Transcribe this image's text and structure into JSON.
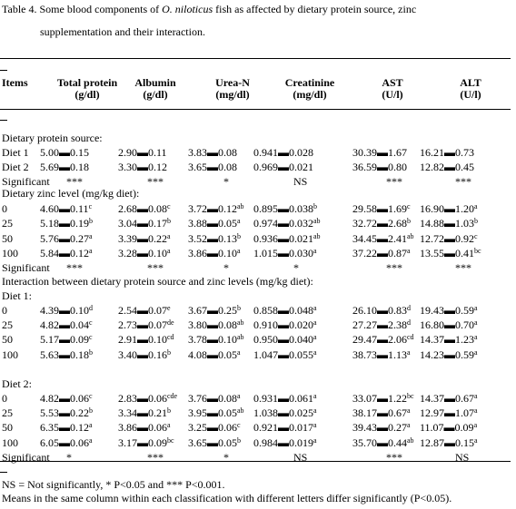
{
  "caption": {
    "pre": "Table 4. Some blood components of ",
    "species": "O. niloticus",
    "post": " fish as affected by dietary protein source, zinc",
    "line2": "supplementation and their interaction."
  },
  "headers": {
    "items": "Items",
    "total_protein": [
      "Total protein",
      "(g/dl)"
    ],
    "albumin": [
      "Albumin",
      "(g/dl)"
    ],
    "urea": [
      "Urea-N",
      "(mg/dl)"
    ],
    "creatinine": [
      "Creatinine",
      "(mg/dl)"
    ],
    "ast": [
      "AST",
      "(U/l)"
    ],
    "alt": [
      "ALT",
      "(U/l)"
    ]
  },
  "sections": {
    "protein": "Dietary protein source:",
    "zinc": "Dietary zinc level  (mg/kg diet):",
    "interaction": "Interaction between dietary protein source and zinc levels (mg/kg diet):",
    "diet1": "Diet 1:",
    "diet2": "Diet 2:"
  },
  "rows": [
    {
      "label": "Diet 1",
      "tp": "5.00▬0.15",
      "alb": "2.90▬0.11",
      "urea": "3.83▬0.08",
      "cre": "0.941▬0.028",
      "ast": "30.39▬1.67",
      "alt": "16.21▬0.73"
    },
    {
      "label": "Diet 2",
      "tp": "5.69▬0.18",
      "alb": "3.30▬0.12",
      "urea": "3.65▬0.08",
      "cre": "0.969▬0.021",
      "ast": "36.59▬0.80",
      "alt": "12.82▬0.45"
    },
    {
      "label": "Significant",
      "tp": "***",
      "alb": "***",
      "urea": "*",
      "cre": "NS",
      "ast": "***",
      "alt": "***"
    },
    {
      "label": "0",
      "tp": "4.60▬0.11",
      "tpS": "c",
      "alb": "2.68▬0.08",
      "albS": "c",
      "urea": "3.72▬0.12",
      "ureaS": "ab",
      "cre": "0.895▬0.038",
      "creS": "b",
      "ast": "29.58▬1.69",
      "astS": "c",
      "alt": "16.90▬1.20",
      "altS": "a"
    },
    {
      "label": "25",
      "tp": "5.18▬0.19",
      "tpS": "b",
      "alb": "3.04▬0.17",
      "albS": "b",
      "urea": "3.88▬0.05",
      "ureaS": "a",
      "cre": "0.974▬0.032",
      "creS": "ab",
      "ast": "32.72▬2.68",
      "astS": "b",
      "alt": "14.88▬1.03",
      "altS": "b"
    },
    {
      "label": "50",
      "tp": "5.76▬0.27",
      "tpS": "a",
      "alb": "3.39▬0.22",
      "albS": "a",
      "urea": "3.52▬0.13",
      "ureaS": "b",
      "cre": "0.936▬0.021",
      "creS": "ab",
      "ast": "34.45▬2.41",
      "astS": "ab",
      "alt": "12.72▬0.92",
      "altS": "c"
    },
    {
      "label": "100",
      "tp": "5.84▬0.12",
      "tpS": "a",
      "alb": "3.28▬0.10",
      "albS": "a",
      "urea": "3.86▬0.10",
      "ureaS": "a",
      "cre": "1.015▬0.030",
      "creS": "a",
      "ast": "37.22▬0.87",
      "astS": "a",
      "alt": "13.55▬0.41",
      "altS": "bc"
    },
    {
      "label": "Significant",
      "tp": "***",
      "alb": "***",
      "urea": "*",
      "cre": "*",
      "ast": "***",
      "alt": "***"
    },
    {
      "label": "0",
      "tp": "4.39▬0.10",
      "tpS": "d",
      "alb": "2.54▬0.07",
      "albS": "e",
      "urea": "3.67▬0.25",
      "ureaS": "b",
      "cre": "0.858▬0.048",
      "creS": "a",
      "ast": "26.10▬0.83",
      "astS": "d",
      "alt": "19.43▬0.59",
      "altS": "a"
    },
    {
      "label": "25",
      "tp": "4.82▬0.04",
      "tpS": "c",
      "alb": "2.73▬0.07",
      "albS": "de",
      "urea": "3.80▬0.08",
      "ureaS": "ab",
      "cre": "0.910▬0.020",
      "creS": "a",
      "ast": "27.27▬2.38",
      "astS": "d",
      "alt": "16.80▬0.70",
      "altS": "a"
    },
    {
      "label": "50",
      "tp": "5.17▬0.09",
      "tpS": "c",
      "alb": "2.91▬0.10",
      "albS": "cd",
      "urea": "3.78▬0.10",
      "ureaS": "ab",
      "cre": "0.950▬0.040",
      "creS": "a",
      "ast": "29.47▬2.06",
      "astS": "cd",
      "alt": "14.37▬1.23",
      "altS": "a"
    },
    {
      "label": "100",
      "tp": "5.63▬0.18",
      "tpS": "b",
      "alb": "3.40▬0.16",
      "albS": "b",
      "urea": "4.08▬0.05",
      "ureaS": "a",
      "cre": "1.047▬0.055",
      "creS": "a",
      "ast": "38.73▬1.13",
      "astS": "a",
      "alt": "14.23▬0.59",
      "altS": "a"
    },
    {
      "label": "0",
      "tp": "4.82▬0.06",
      "tpS": "c",
      "alb": "2.83▬0.06",
      "albS": "cde",
      "urea": "3.76▬0.08",
      "ureaS": "a",
      "cre": "0.931▬0.061",
      "creS": "a",
      "ast": "33.07▬1.22",
      "astS": "bc",
      "alt": "14.37▬0.67",
      "altS": "a"
    },
    {
      "label": "25",
      "tp": "5.53▬0.22",
      "tpS": "b",
      "alb": "3.34▬0.21",
      "albS": "b",
      "urea": "3.95▬0.05",
      "ureaS": "ab",
      "cre": "1.038▬0.025",
      "creS": "a",
      "ast": "38.17▬0.67",
      "astS": "a",
      "alt": "12.97▬1.07",
      "altS": "a"
    },
    {
      "label": "50",
      "tp": "6.35▬0.12",
      "tpS": "a",
      "alb": "3.86▬0.06",
      "albS": "a",
      "urea": "3.25▬0.06",
      "ureaS": "c",
      "cre": "0.921▬0.017",
      "creS": "a",
      "ast": "39.43▬0.27",
      "astS": "a",
      "alt": "11.07▬0.09",
      "altS": "a"
    },
    {
      "label": "100",
      "tp": "6.05▬0.06",
      "tpS": "a",
      "alb": "3.17▬0.09",
      "albS": "bc",
      "urea": "3.65▬0.05",
      "ureaS": "b",
      "cre": "0.984▬0.019",
      "creS": "a",
      "ast": "35.70▬0.44",
      "astS": "ab",
      "alt": "12.87▬0.15",
      "altS": "a"
    },
    {
      "label": "Significant",
      "tp": "*",
      "alb": "***",
      "urea": "*",
      "cre": "NS",
      "ast": "***",
      "alt": "NS"
    }
  ],
  "footnotes": {
    "line1": "NS = Not significantly, * P<0.05  and  *** P<0.001.",
    "line2": "Means in the same column within each classification with different letters differ significantly (P<0.05)."
  }
}
